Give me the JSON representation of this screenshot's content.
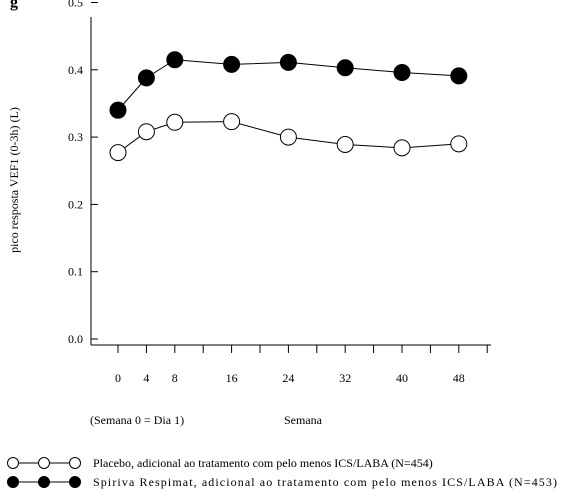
{
  "chart_data": {
    "type": "line",
    "title_fragment": "g",
    "ylabel": "pico resposta VEF1 (0-3h) (L)",
    "xlabel": "Semana",
    "x_note": "(Semana 0 = Dia 1)",
    "x": [
      0,
      4,
      8,
      16,
      24,
      32,
      40,
      48
    ],
    "x_tick_labels": [
      "0",
      "4",
      "8",
      "16",
      "24",
      "32",
      "40",
      "48"
    ],
    "ylim": [
      0.0,
      0.5
    ],
    "y_ticks": [
      0.0,
      0.1,
      0.2,
      0.3,
      0.4,
      0.5
    ],
    "y_tick_labels": [
      "0.0",
      "0.1",
      "0.2",
      "0.3",
      "0.4",
      "0.5"
    ],
    "series": [
      {
        "name": "Placebo, adicional ao tratamento com pelo menos ICS/LABA (N=454)",
        "marker": "open-circle",
        "values": [
          0.277,
          0.308,
          0.322,
          0.323,
          0.3,
          0.289,
          0.284,
          0.29
        ]
      },
      {
        "name": "Spiriva Respimat, adicional ao tratamento com pelo menos ICS/LABA (N=453)",
        "marker": "filled-circle",
        "values": [
          0.34,
          0.388,
          0.415,
          0.408,
          0.411,
          0.403,
          0.396,
          0.391
        ]
      }
    ],
    "grid": false,
    "legend_position": "bottom"
  }
}
